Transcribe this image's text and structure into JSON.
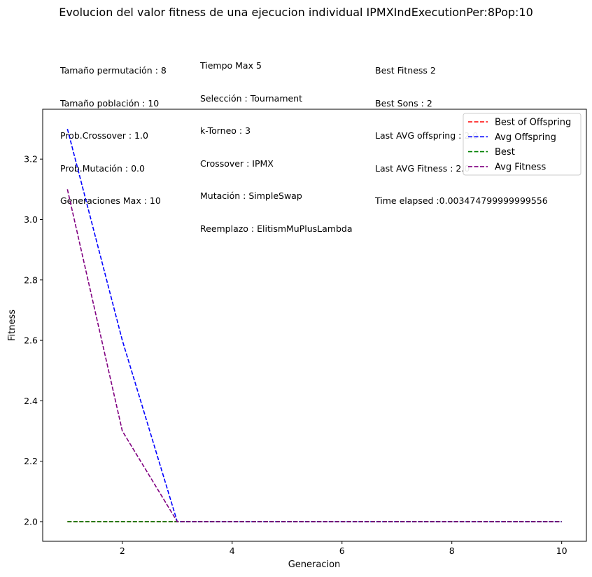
{
  "chart_data": {
    "type": "line",
    "title": "Evolucion del valor fitness de una ejecucion individual IPMXIndExecutionPer:8Pop:10",
    "xlabel": "Generacion",
    "ylabel": "Fitness",
    "x": [
      1,
      2,
      3,
      4,
      5,
      6,
      7,
      8,
      9,
      10
    ],
    "xlim": [
      0.55,
      10.45
    ],
    "ylim": [
      1.935,
      3.365
    ],
    "xticks": [
      2,
      4,
      6,
      8,
      10
    ],
    "yticks": [
      2.0,
      2.2,
      2.4,
      2.6,
      2.8,
      3.0,
      3.2
    ],
    "xtick_labels": [
      "2",
      "4",
      "6",
      "8",
      "10"
    ],
    "ytick_labels": [
      "2.0",
      "2.2",
      "2.4",
      "2.6",
      "2.8",
      "3.0",
      "3.2"
    ],
    "grid": false,
    "legend_position": "top-right",
    "series": [
      {
        "name": "Best of Offspring",
        "color": "#ff0000",
        "style": "dashed",
        "values": [
          2,
          2,
          2,
          2,
          2,
          2,
          2,
          2,
          2,
          2
        ]
      },
      {
        "name": "Avg Offspring",
        "color": "#0000ff",
        "style": "dashed",
        "values": [
          3.3,
          2.6,
          2.0,
          2.0,
          2.0,
          2.0,
          2.0,
          2.0,
          2.0,
          2.0
        ]
      },
      {
        "name": "Best",
        "color": "#008000",
        "style": "dashed",
        "values": [
          2,
          2,
          2,
          2,
          2,
          2,
          2,
          2,
          2,
          2
        ]
      },
      {
        "name": "Avg Fitness",
        "color": "#800080",
        "style": "dashed",
        "values": [
          3.1,
          2.3,
          2.0,
          2.0,
          2.0,
          2.0,
          2.0,
          2.0,
          2.0,
          2.0
        ]
      }
    ]
  },
  "info": {
    "col1": [
      "Tamaño permutación : 8",
      "Tamaño población : 10",
      "Prob.Crossover : 1.0",
      "Prob.Mutación : 0.0",
      "Generaciones Max : 10"
    ],
    "col2": [
      "Tiempo Max 5",
      "Selección : Tournament",
      "k-Torneo : 3",
      "Crossover : IPMX",
      "Mutación : SimpleSwap",
      "Reemplazo : ElitismMuPlusLambda"
    ],
    "col3": [
      "Best Fitness 2",
      "Best Sons : 2",
      "Last AVG offspring : 2.0",
      "Last AVG Fitness : 2.0",
      "Time elapsed :0.003474799999999556"
    ]
  }
}
